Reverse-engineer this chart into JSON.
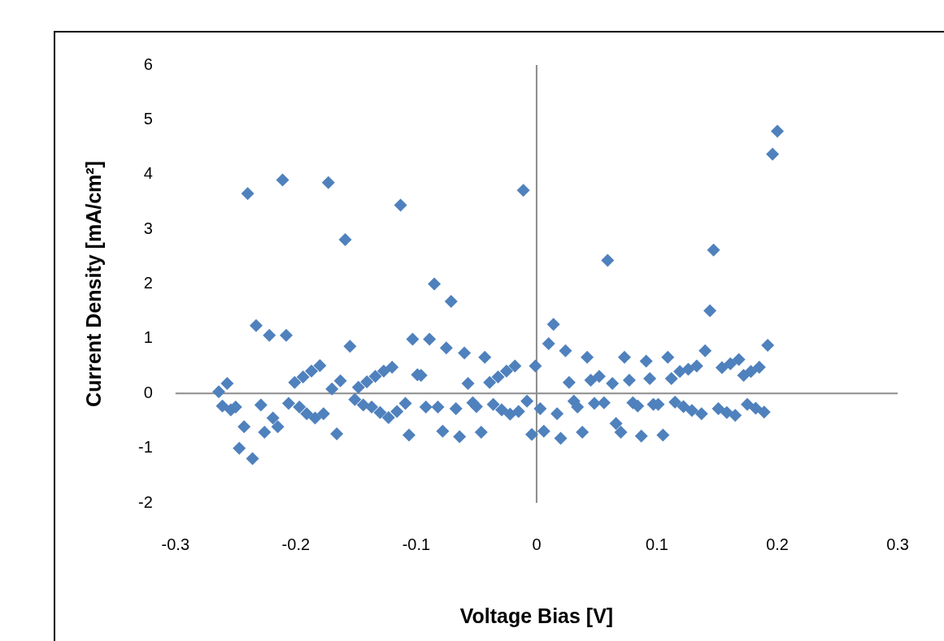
{
  "chart_data": {
    "type": "scatter",
    "xlabel": "Voltage Bias [V]",
    "ylabel": "Current Density [mA/cm²]",
    "xlim": [
      -0.3,
      0.3
    ],
    "xticks": [
      -0.3,
      -0.2,
      -0.1,
      0,
      0.1,
      0.2,
      0.3
    ],
    "ylim": [
      -2,
      6
    ],
    "yticks": [
      -2,
      -1,
      0,
      1,
      2,
      3,
      4,
      5,
      6
    ],
    "legend": false,
    "marker": "diamond",
    "series": [
      {
        "color": "#4f81bd",
        "x": [
          -0.264,
          -0.257,
          -0.261,
          -0.254,
          -0.25,
          -0.247,
          -0.243,
          -0.24,
          -0.236,
          -0.233,
          -0.229,
          -0.226,
          -0.222,
          -0.219,
          -0.215,
          -0.211,
          -0.208,
          -0.206,
          -0.201,
          -0.197,
          -0.194,
          -0.191,
          -0.187,
          -0.184,
          -0.18,
          -0.177,
          -0.173,
          -0.17,
          -0.166,
          -0.163,
          -0.159,
          -0.155,
          -0.151,
          -0.148,
          -0.144,
          -0.141,
          -0.137,
          -0.134,
          -0.13,
          -0.127,
          -0.123,
          -0.12,
          -0.116,
          -0.113,
          -0.109,
          -0.106,
          -0.103,
          -0.099,
          -0.096,
          -0.092,
          -0.089,
          -0.085,
          -0.082,
          -0.078,
          -0.075,
          -0.071,
          -0.067,
          -0.064,
          -0.06,
          -0.057,
          -0.053,
          -0.05,
          -0.046,
          -0.043,
          -0.039,
          -0.036,
          -0.032,
          -0.029,
          -0.025,
          -0.022,
          -0.018,
          -0.015,
          -0.011,
          -0.008,
          -0.004,
          -0.001,
          0.003,
          0.006,
          0.01,
          0.014,
          0.017,
          0.02,
          0.024,
          0.027,
          0.031,
          0.034,
          0.038,
          0.042,
          0.045,
          0.048,
          0.052,
          0.056,
          0.059,
          0.063,
          0.066,
          0.07,
          0.073,
          0.077,
          0.08,
          0.084,
          0.087,
          0.091,
          0.094,
          0.097,
          0.101,
          0.105,
          0.109,
          0.112,
          0.115,
          0.119,
          0.122,
          0.126,
          0.129,
          0.133,
          0.137,
          0.14,
          0.144,
          0.147,
          0.151,
          0.154,
          0.158,
          0.161,
          0.165,
          0.168,
          0.172,
          0.175,
          0.178,
          0.182,
          0.185,
          0.189,
          0.192,
          0.196,
          0.2
        ],
        "values": [
          0.03,
          0.18,
          -0.23,
          -0.3,
          -0.25,
          -1.0,
          -0.61,
          3.65,
          -1.19,
          1.24,
          -0.21,
          -0.71,
          1.06,
          -0.45,
          -0.61,
          3.9,
          1.06,
          -0.18,
          0.2,
          -0.25,
          0.3,
          -0.37,
          0.41,
          -0.45,
          0.51,
          -0.37,
          3.85,
          0.08,
          -0.74,
          0.23,
          2.81,
          0.86,
          -0.11,
          0.11,
          -0.21,
          0.21,
          -0.25,
          0.31,
          -0.35,
          0.41,
          -0.44,
          0.48,
          -0.33,
          3.44,
          -0.18,
          -0.76,
          0.99,
          0.34,
          0.33,
          -0.25,
          0.99,
          2.0,
          -0.25,
          -0.69,
          0.83,
          1.68,
          -0.28,
          -0.79,
          0.74,
          0.18,
          -0.17,
          -0.24,
          -0.71,
          0.66,
          0.2,
          -0.2,
          0.3,
          -0.3,
          0.41,
          -0.38,
          0.5,
          -0.33,
          3.71,
          -0.14,
          -0.75,
          0.5,
          -0.28,
          -0.69,
          0.91,
          1.26,
          -0.37,
          -0.82,
          0.78,
          0.2,
          -0.14,
          -0.25,
          -0.71,
          0.66,
          0.24,
          -0.18,
          0.31,
          -0.17,
          2.43,
          0.18,
          -0.55,
          -0.71,
          0.66,
          0.24,
          -0.17,
          -0.23,
          -0.78,
          0.59,
          0.27,
          -0.2,
          -0.2,
          -0.76,
          0.66,
          0.27,
          -0.16,
          0.4,
          -0.24,
          0.44,
          -0.31,
          0.5,
          -0.37,
          0.78,
          1.51,
          2.62,
          -0.28,
          0.47,
          -0.35,
          0.54,
          -0.4,
          0.62,
          0.33,
          -0.2,
          0.4,
          -0.27,
          0.48,
          -0.34,
          0.88,
          4.37,
          4.79
        ]
      }
    ]
  }
}
